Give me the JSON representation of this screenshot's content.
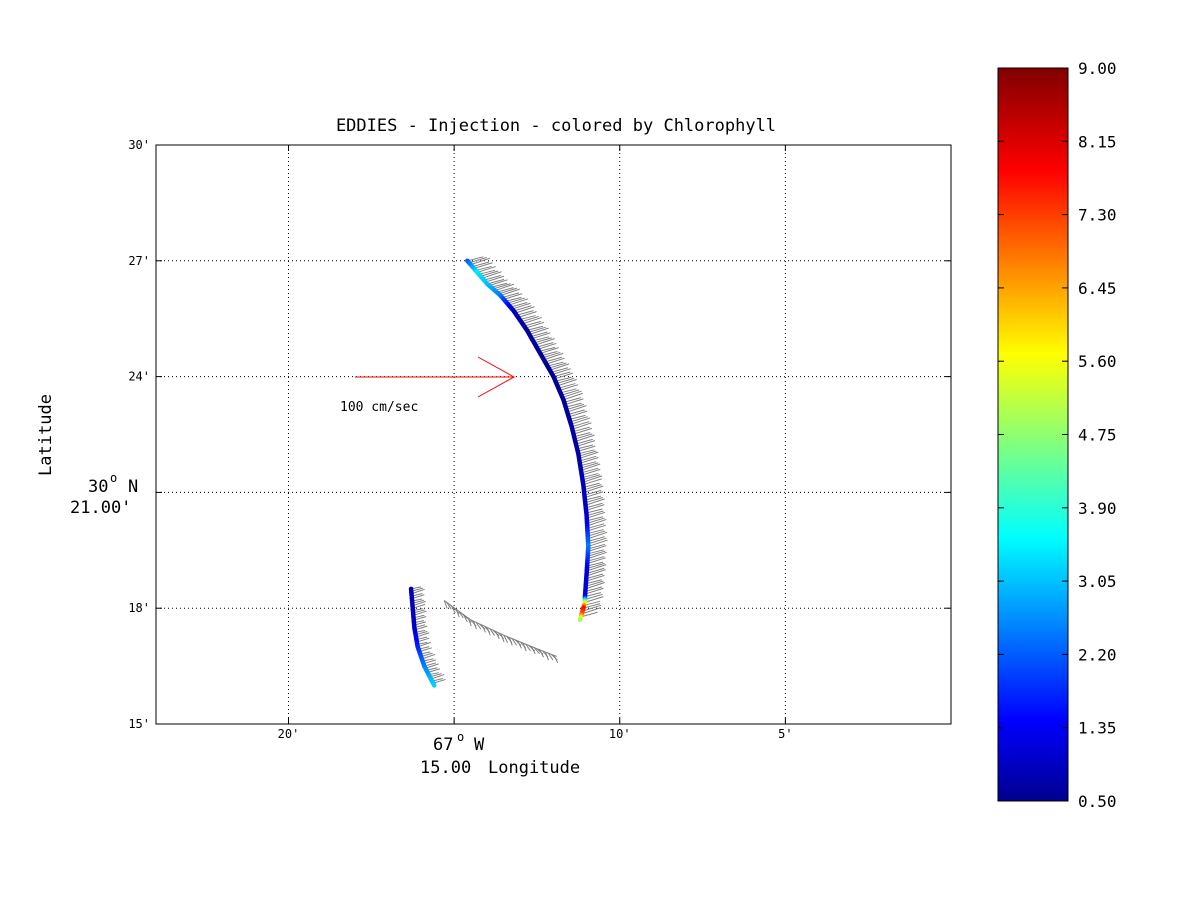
{
  "chart_data": {
    "type": "scatter",
    "title": "EDDIES - Injection - colored by Chlorophyll",
    "xlabel": "Longitude",
    "ylabel": "Latitude",
    "x_center_label": {
      "line1": "67",
      "sup": "o",
      "suffix": "W",
      "line2": "15.00"
    },
    "y_center_label": {
      "line1": "30",
      "sup": "o",
      "suffix": "N",
      "line2": "21.00'"
    },
    "xlim_minutes_west": [
      24,
      0
    ],
    "ylim_minutes_north": [
      15,
      30
    ],
    "x_ticks": [
      {
        "value": 20,
        "label": "20'"
      },
      {
        "value": 15,
        "label": ""
      },
      {
        "value": 10,
        "label": "10'"
      },
      {
        "value": 5,
        "label": "5'"
      }
    ],
    "y_ticks": [
      {
        "value": 30,
        "label": "30'"
      },
      {
        "value": 27,
        "label": "27'"
      },
      {
        "value": 24,
        "label": "24'"
      },
      {
        "value": 21,
        "label": ""
      },
      {
        "value": 18,
        "label": "18'"
      },
      {
        "value": 15,
        "label": "15'"
      }
    ],
    "grid": true,
    "reference_arrow": {
      "label": "100 cm/sec",
      "speed_cm_s": 100,
      "color": "#ff0000"
    },
    "colorbar": {
      "colormap": "jet",
      "range": [
        0.5,
        9.0
      ],
      "tick_labels": [
        "9.00",
        "8.15",
        "7.30",
        "6.45",
        "5.60",
        "4.75",
        "3.90",
        "3.05",
        "2.20",
        "1.35",
        "0.50"
      ]
    },
    "series": [
      {
        "points": [
          {
            "lon_min": 14.6,
            "lat_min": 27.0,
            "chl": 2.3
          },
          {
            "lon_min": 14.3,
            "lat_min": 26.7,
            "chl": 3.5
          },
          {
            "lon_min": 14.0,
            "lat_min": 26.4,
            "chl": 3.2
          },
          {
            "lon_min": 13.6,
            "lat_min": 26.1,
            "chl": 2.6
          },
          {
            "lon_min": 13.2,
            "lat_min": 25.7,
            "chl": 1.0
          },
          {
            "lon_min": 12.8,
            "lat_min": 25.2,
            "chl": 0.8
          },
          {
            "lon_min": 12.4,
            "lat_min": 24.6,
            "chl": 0.7
          },
          {
            "lon_min": 12.0,
            "lat_min": 24.0,
            "chl": 0.7
          },
          {
            "lon_min": 11.7,
            "lat_min": 23.4,
            "chl": 0.7
          },
          {
            "lon_min": 11.45,
            "lat_min": 22.7,
            "chl": 0.8
          },
          {
            "lon_min": 11.25,
            "lat_min": 22.0,
            "chl": 0.8
          },
          {
            "lon_min": 11.1,
            "lat_min": 21.2,
            "chl": 1.0
          },
          {
            "lon_min": 11.0,
            "lat_min": 20.4,
            "chl": 1.1
          },
          {
            "lon_min": 10.95,
            "lat_min": 19.6,
            "chl": 2.6
          },
          {
            "lon_min": 11.0,
            "lat_min": 18.9,
            "chl": 1.2
          },
          {
            "lon_min": 11.05,
            "lat_min": 18.3,
            "chl": 1.3
          },
          {
            "lon_min": 11.05,
            "lat_min": 18.15,
            "chl": 5.3
          },
          {
            "lon_min": 11.1,
            "lat_min": 18.0,
            "chl": 8.0
          },
          {
            "lon_min": 11.15,
            "lat_min": 17.85,
            "chl": 7.2
          },
          {
            "lon_min": 11.2,
            "lat_min": 17.7,
            "chl": 5.0
          }
        ]
      },
      {
        "points": [
          {
            "lon_min": 16.3,
            "lat_min": 18.5,
            "chl": 0.9
          },
          {
            "lon_min": 16.25,
            "lat_min": 18.0,
            "chl": 1.0
          },
          {
            "lon_min": 16.2,
            "lat_min": 17.5,
            "chl": 1.1
          },
          {
            "lon_min": 16.1,
            "lat_min": 17.0,
            "chl": 1.8
          },
          {
            "lon_min": 15.9,
            "lat_min": 16.5,
            "chl": 2.6
          },
          {
            "lon_min": 15.6,
            "lat_min": 16.0,
            "chl": 3.3
          }
        ]
      }
    ],
    "velocity_tracks": [
      {
        "points": [
          {
            "lon_min": 15.3,
            "lat_min": 18.2
          },
          {
            "lon_min": 14.5,
            "lat_min": 17.7
          },
          {
            "lon_min": 13.5,
            "lat_min": 17.3
          },
          {
            "lon_min": 12.5,
            "lat_min": 16.95
          },
          {
            "lon_min": 11.9,
            "lat_min": 16.75
          }
        ]
      }
    ]
  }
}
